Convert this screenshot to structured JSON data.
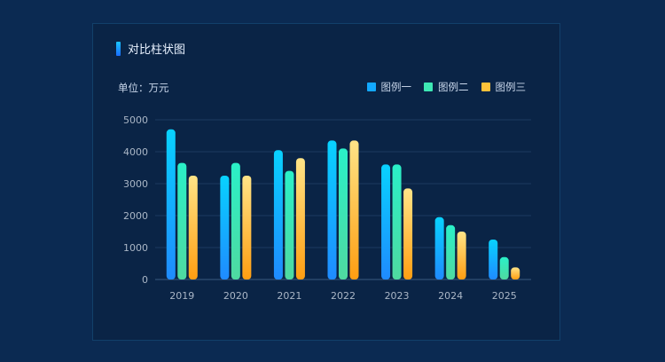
{
  "panel": {
    "title": "对比柱状图",
    "unit": "单位：万元"
  },
  "legend": [
    {
      "label": "图例一",
      "color": "#12a8ff"
    },
    {
      "label": "图例二",
      "color": "#3ee8b4"
    },
    {
      "label": "图例三",
      "color": "#ffc23a"
    }
  ],
  "chart_data": {
    "type": "bar",
    "title": "对比柱状图",
    "ylabel": "单位：万元",
    "xlabel": "",
    "categories": [
      "2019",
      "2020",
      "2021",
      "2022",
      "2023",
      "2024",
      "2025"
    ],
    "ylim": [
      0,
      5000
    ],
    "yticks": [
      0,
      1000,
      2000,
      3000,
      4000,
      5000
    ],
    "grid": true,
    "legend_position": "top-right",
    "series": [
      {
        "name": "图例一",
        "values": [
          4700,
          3250,
          4050,
          4350,
          3600,
          1950,
          1250
        ],
        "color_top": "#08d2ff",
        "color_bottom": "#1f8bff"
      },
      {
        "name": "图例二",
        "values": [
          3650,
          3650,
          3400,
          4100,
          3600,
          1700,
          700
        ],
        "color_top": "#2af0c8",
        "color_bottom": "#4fd9a0"
      },
      {
        "name": "图例三",
        "values": [
          3250,
          3250,
          3800,
          4350,
          2850,
          1500,
          380
        ],
        "color_top": "#ffe487",
        "color_bottom": "#ff9e12"
      }
    ]
  }
}
